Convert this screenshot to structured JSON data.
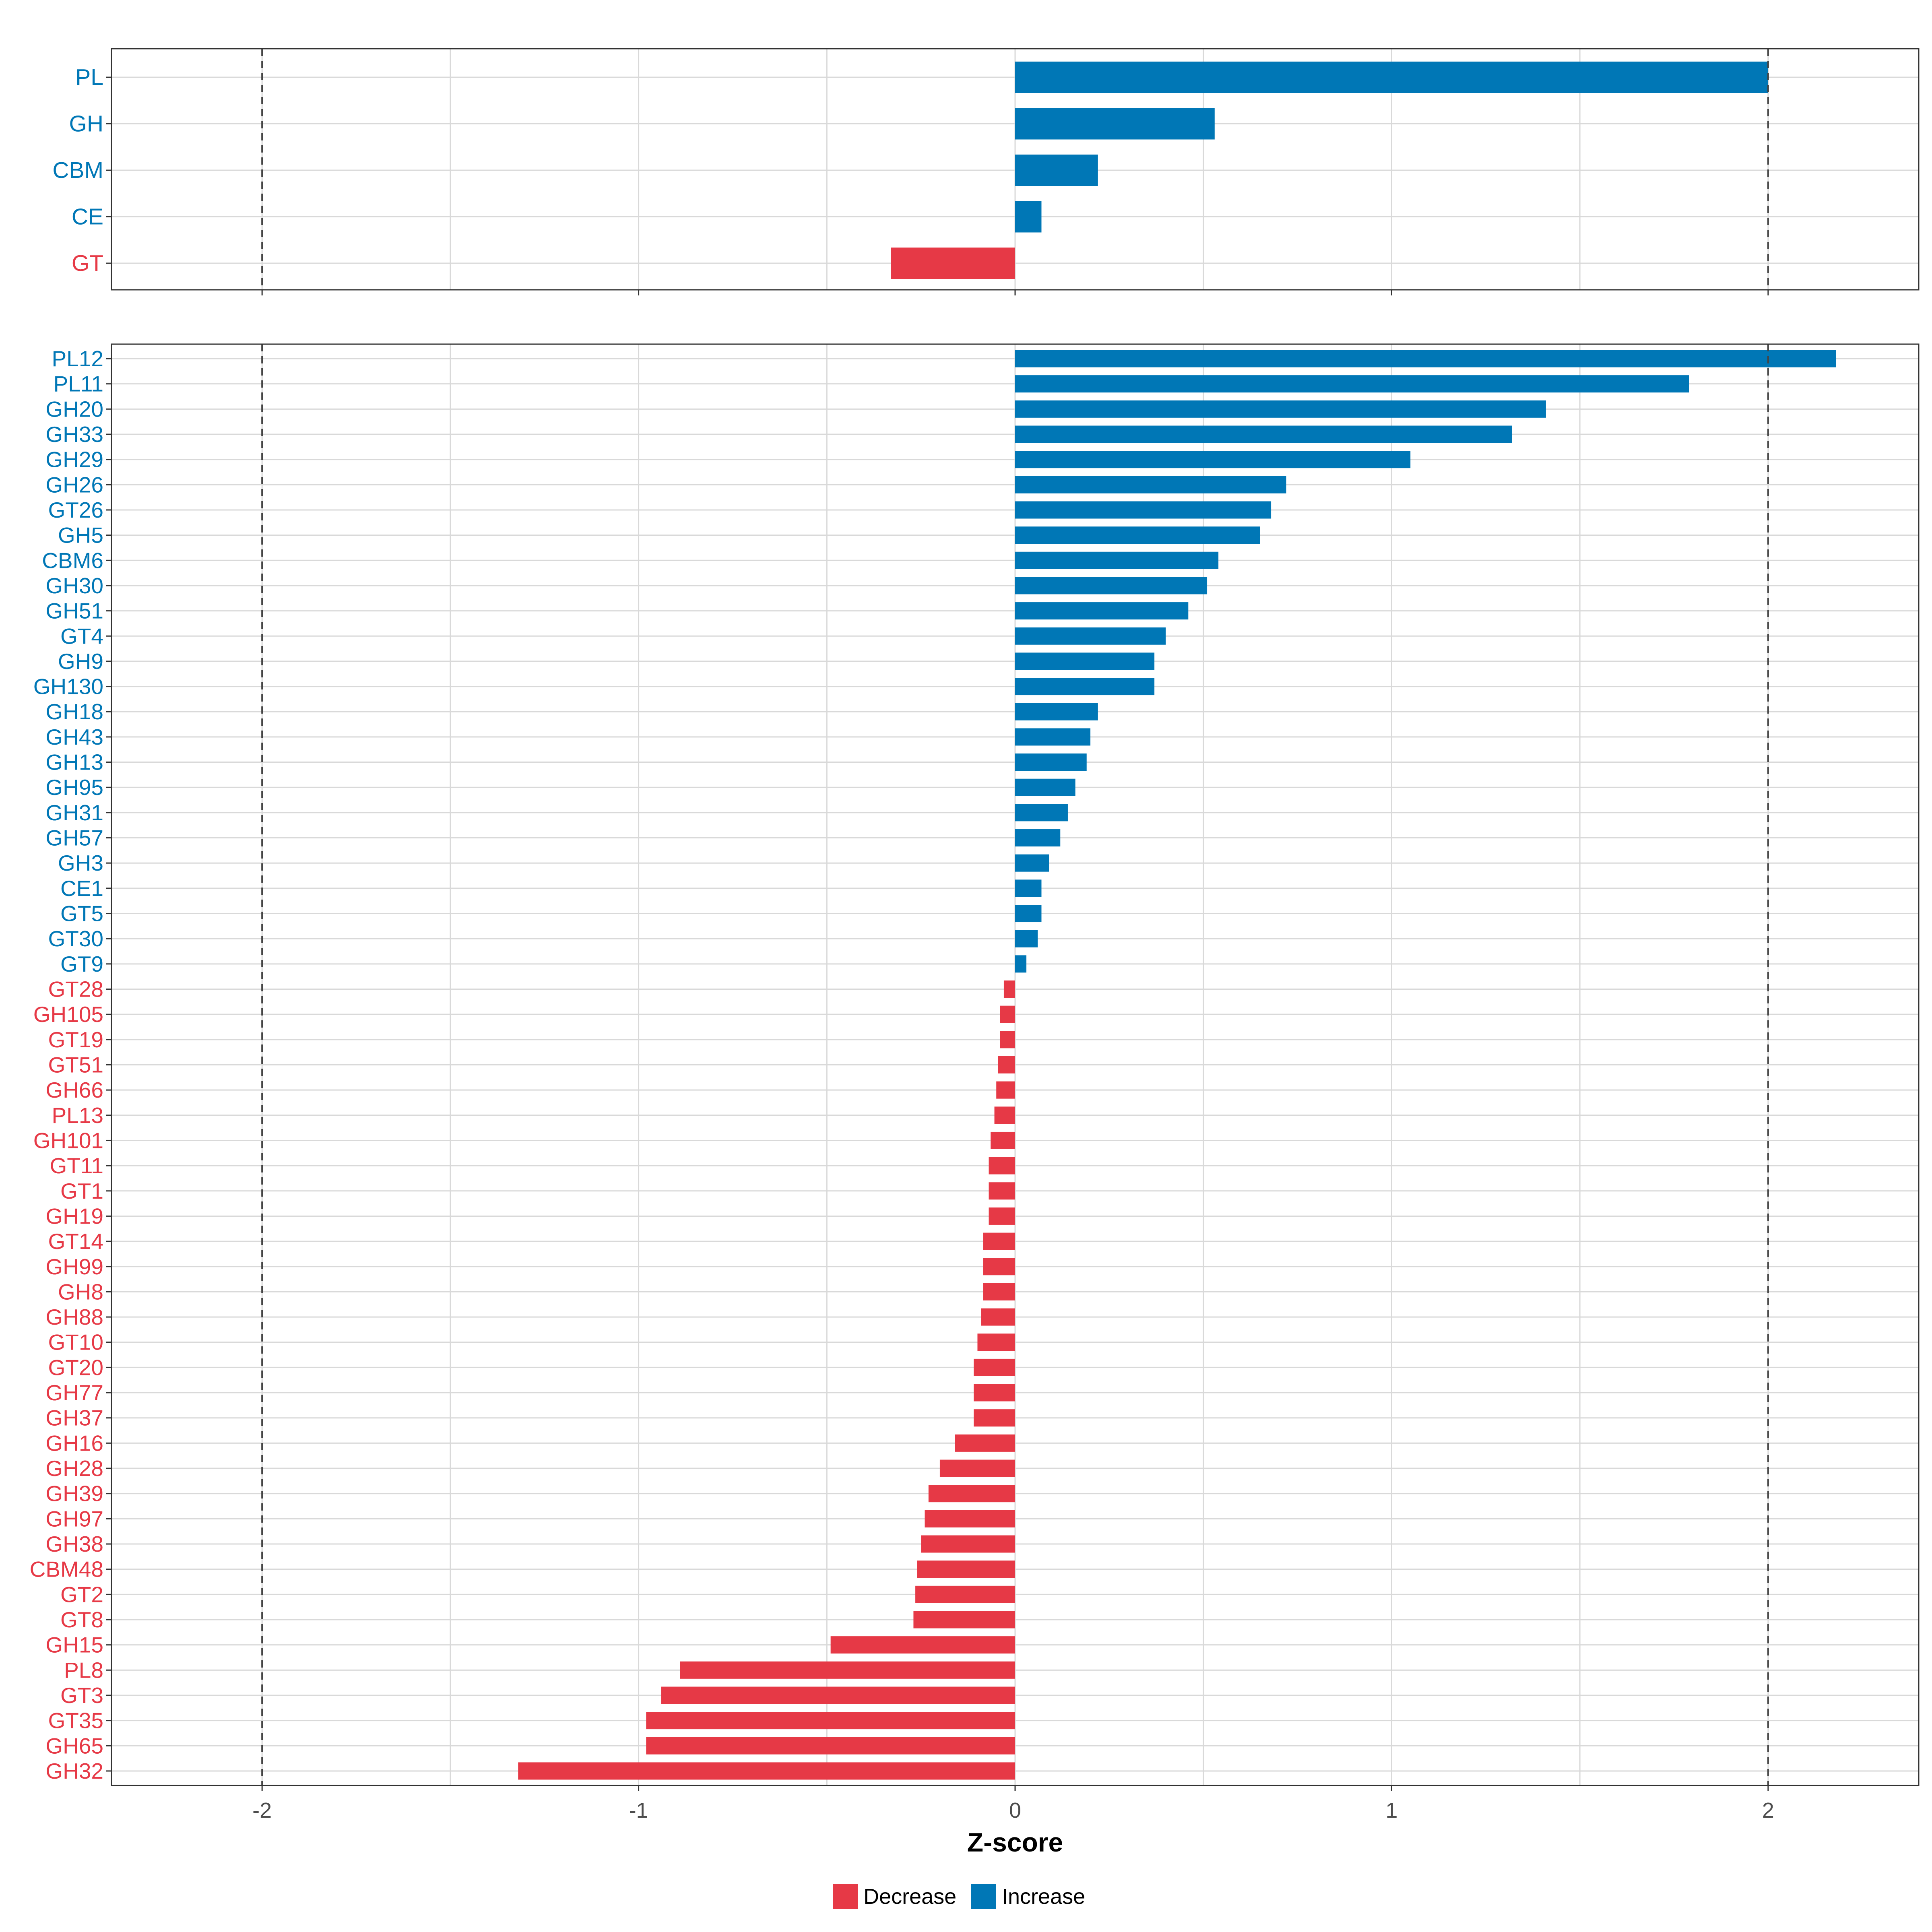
{
  "colors": {
    "increase": "#0077b6",
    "decrease": "#e63946",
    "grid": "#d9d9d9",
    "border": "#333333",
    "refline": "#444444",
    "tick_text": "#4d4d4d",
    "title_text": "#000000"
  },
  "chart_data": [
    {
      "type": "bar",
      "orientation": "horizontal",
      "panel": "top",
      "title": "",
      "xlabel": "",
      "ylabel": "",
      "xlim": [
        -2.4,
        2.4
      ],
      "x_ticks": [
        -2,
        -1,
        0,
        1,
        2
      ],
      "reference_lines": [
        -2,
        2
      ],
      "grid": true,
      "categories": [
        "PL",
        "GH",
        "CBM",
        "CE",
        "GT"
      ],
      "values": [
        2.0,
        0.53,
        0.22,
        0.07,
        -0.33
      ]
    },
    {
      "type": "bar",
      "orientation": "horizontal",
      "panel": "bottom",
      "title": "",
      "xlabel": "Z-score",
      "ylabel": "",
      "xlim": [
        -2.4,
        2.4
      ],
      "x_ticks": [
        -2,
        -1,
        0,
        1,
        2
      ],
      "x_tick_labels": [
        "-2",
        "-1",
        "0",
        "1",
        "2"
      ],
      "reference_lines": [
        -2,
        2
      ],
      "grid": true,
      "categories": [
        "PL12",
        "PL11",
        "GH20",
        "GH33",
        "GH29",
        "GH26",
        "GT26",
        "GH5",
        "CBM6",
        "GH30",
        "GH51",
        "GT4",
        "GH9",
        "GH130",
        "GH18",
        "GH43",
        "GH13",
        "GH95",
        "GH31",
        "GH57",
        "GH3",
        "CE1",
        "GT5",
        "GT30",
        "GT9",
        "GT28",
        "GH105",
        "GT19",
        "GT51",
        "GH66",
        "PL13",
        "GH101",
        "GT11",
        "GT1",
        "GH19",
        "GT14",
        "GH99",
        "GH8",
        "GH88",
        "GT10",
        "GT20",
        "GH77",
        "GH37",
        "GH16",
        "GH28",
        "GH39",
        "GH97",
        "GH38",
        "CBM48",
        "GT2",
        "GT8",
        "GH15",
        "PL8",
        "GT3",
        "GT35",
        "GH65",
        "GH32"
      ],
      "values": [
        2.18,
        1.79,
        1.41,
        1.32,
        1.05,
        0.72,
        0.68,
        0.65,
        0.54,
        0.51,
        0.46,
        0.4,
        0.37,
        0.37,
        0.22,
        0.2,
        0.19,
        0.16,
        0.14,
        0.12,
        0.09,
        0.07,
        0.07,
        0.06,
        0.03,
        -0.03,
        -0.04,
        -0.04,
        -0.045,
        -0.05,
        -0.055,
        -0.065,
        -0.07,
        -0.07,
        -0.07,
        -0.085,
        -0.085,
        -0.085,
        -0.09,
        -0.1,
        -0.11,
        -0.11,
        -0.11,
        -0.16,
        -0.2,
        -0.23,
        -0.24,
        -0.25,
        -0.26,
        -0.265,
        -0.27,
        -0.49,
        -0.89,
        -0.94,
        -0.98,
        -0.98,
        -1.32
      ]
    }
  ],
  "legend": {
    "position": "bottom",
    "items": [
      {
        "label": "Decrease",
        "color_key": "decrease"
      },
      {
        "label": "Increase",
        "color_key": "increase"
      }
    ]
  }
}
